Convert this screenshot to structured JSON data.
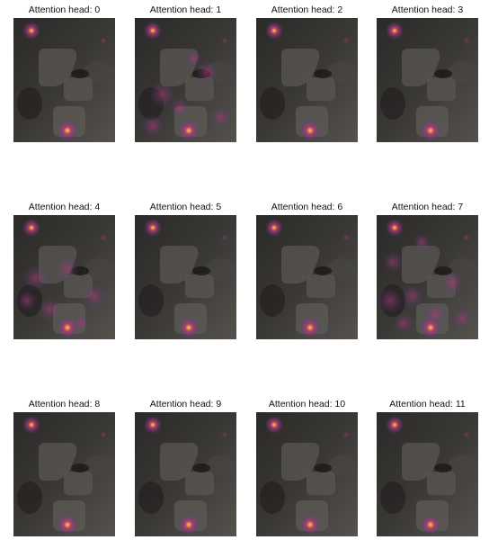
{
  "figure": {
    "panels": [
      {
        "title": "Attention head: 0",
        "image": "attention-map-head-0"
      },
      {
        "title": "Attention head: 1",
        "image": "attention-map-head-1"
      },
      {
        "title": "Attention head: 2",
        "image": "attention-map-head-2"
      },
      {
        "title": "Attention head: 3",
        "image": "attention-map-head-3"
      },
      {
        "title": "Attention head: 4",
        "image": "attention-map-head-4"
      },
      {
        "title": "Attention head: 5",
        "image": "attention-map-head-5"
      },
      {
        "title": "Attention head: 6",
        "image": "attention-map-head-6"
      },
      {
        "title": "Attention head: 7",
        "image": "attention-map-head-7"
      },
      {
        "title": "Attention head: 8",
        "image": "attention-map-head-8"
      },
      {
        "title": "Attention head: 9",
        "image": "attention-map-head-9"
      },
      {
        "title": "Attention head: 10",
        "image": "attention-map-head-10"
      },
      {
        "title": "Attention head: 11",
        "image": "attention-map-head-11"
      }
    ]
  },
  "colors": {
    "background": "#ffffff",
    "image_base": "#3a3835",
    "heat_low": "#5a3a9a",
    "heat_mid": "#c0386e",
    "heat_high": "#ffd24a"
  }
}
